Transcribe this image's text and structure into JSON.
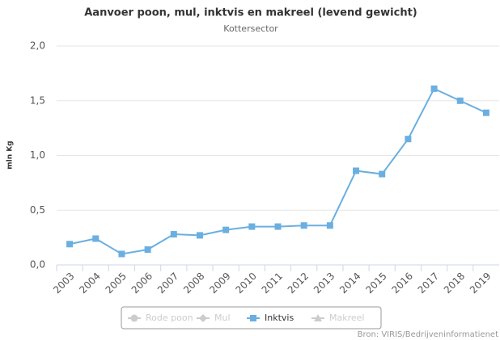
{
  "chart_data": {
    "type": "line",
    "title": "Aanvoer poon, mul, inktvis en makreel (levend gewicht)",
    "subtitle": "Kottersector",
    "y_label": "mln Kg",
    "source": "Bron: VIRIS/Bedrijveninformatienet",
    "categories": [
      "2003",
      "2004",
      "2005",
      "2006",
      "2007",
      "2008",
      "2009",
      "2010",
      "2011",
      "2012",
      "2013",
      "2014",
      "2015",
      "2016",
      "2017",
      "2018",
      "2019"
    ],
    "series": [
      {
        "name": "Inktvis",
        "color": "#6aafe0",
        "values": [
          0.19,
          0.24,
          0.1,
          0.14,
          0.28,
          0.27,
          0.32,
          0.35,
          0.35,
          0.36,
          0.36,
          0.86,
          0.83,
          1.15,
          1.61,
          1.5,
          1.39
        ]
      }
    ],
    "legend": [
      {
        "name": "Rode poon",
        "symbol": "circle",
        "visible": false
      },
      {
        "name": "Mul",
        "symbol": "diamond",
        "visible": false
      },
      {
        "name": "Inktvis",
        "symbol": "square",
        "visible": true
      },
      {
        "name": "Makreel",
        "symbol": "triangle",
        "visible": false
      }
    ],
    "hidden_color": "#cccccc",
    "ylim": [
      0,
      2
    ],
    "yticks": [
      {
        "value": 0,
        "label": "0,0"
      },
      {
        "value": 0.5,
        "label": "0,5"
      },
      {
        "value": 1,
        "label": "1,0"
      },
      {
        "value": 1.5,
        "label": "1,5"
      },
      {
        "value": 2,
        "label": "2,0"
      }
    ],
    "grid": true
  }
}
